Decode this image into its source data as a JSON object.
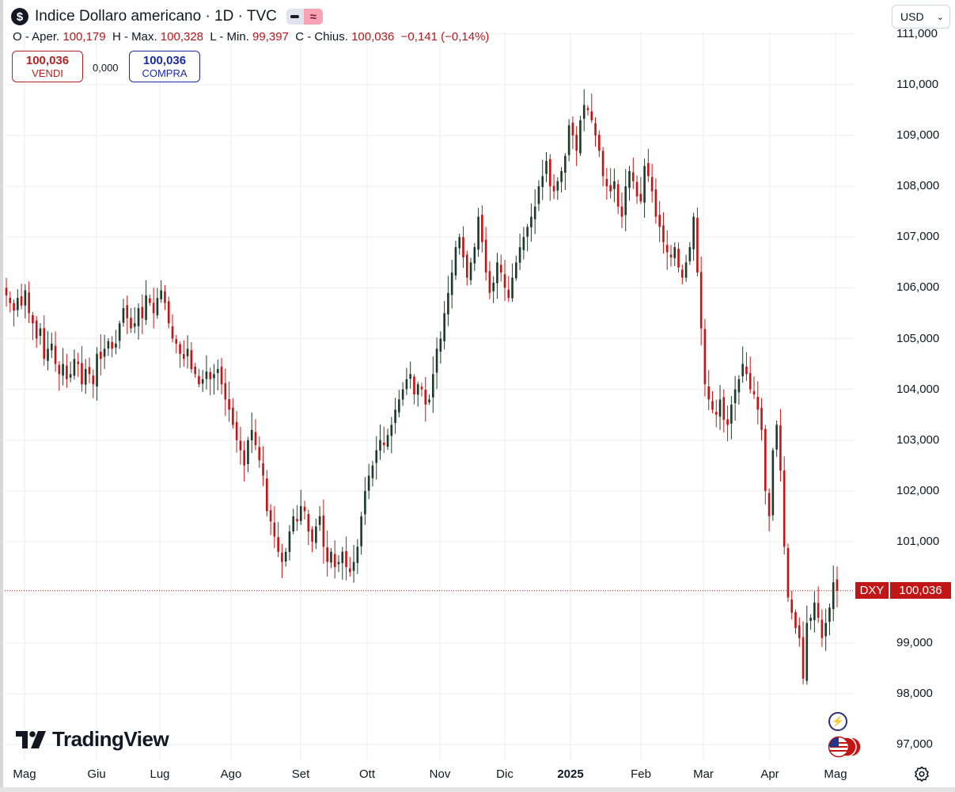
{
  "header": {
    "title": "Indice Dollaro americano · 1D · TVC",
    "currency": "USD"
  },
  "ohlc": {
    "open_label": "O - Aper.",
    "open": "100,179",
    "high_label": "H - Max.",
    "high": "100,328",
    "low_label": "L - Min.",
    "low": "99,397",
    "close_label": "C - Chius.",
    "close": "100,036",
    "change": "−0,141 (−0,14%)"
  },
  "trade": {
    "sell_price": "100,036",
    "sell_label": "VENDI",
    "spread": "0,000",
    "buy_price": "100,036",
    "buy_label": "COMPRA"
  },
  "price_tag": {
    "symbol": "DXY",
    "price": "100,036"
  },
  "logo": {
    "text": "TradingView"
  },
  "colors": {
    "up": "#1d3b2a",
    "down": "#c21515",
    "grid": "#eceef2"
  },
  "chart_data": {
    "type": "candlestick",
    "title": "Indice Dollaro americano · 1D · TVC",
    "y_ticks": [
      "111,000",
      "110,000",
      "109,000",
      "108,000",
      "107,000",
      "106,000",
      "105,000",
      "104,000",
      "103,000",
      "102,000",
      "101,000",
      "99,000",
      "98,000",
      "97,000"
    ],
    "x_ticks": [
      "Mag",
      "Giu",
      "Lug",
      "Ago",
      "Set",
      "Ott",
      "Nov",
      "Dic",
      "2025",
      "Feb",
      "Mar",
      "Apr",
      "Mag"
    ],
    "ylim": [
      96.5,
      111.1
    ],
    "last_price": 100.036,
    "grid": true,
    "closes": [
      105.85,
      105.7,
      105.55,
      105.8,
      105.65,
      105.95,
      105.5,
      105.3,
      105.0,
      105.2,
      104.6,
      104.8,
      104.9,
      104.5,
      104.3,
      104.5,
      104.2,
      104.3,
      104.6,
      104.5,
      104.1,
      104.4,
      104.3,
      104.1,
      104.7,
      104.6,
      104.8,
      104.95,
      104.8,
      104.9,
      105.3,
      105.6,
      105.4,
      105.2,
      105.3,
      105.6,
      105.4,
      105.85,
      105.7,
      105.5,
      105.8,
      105.95,
      105.7,
      105.3,
      105.0,
      104.9,
      104.7,
      104.6,
      104.8,
      104.4,
      104.3,
      104.1,
      104.2,
      104.35,
      104.2,
      104.3,
      104.4,
      104.1,
      103.8,
      103.6,
      103.3,
      103.0,
      102.8,
      102.5,
      103.0,
      103.2,
      102.9,
      102.6,
      102.3,
      101.6,
      101.4,
      101.1,
      100.8,
      100.6,
      100.8,
      101.2,
      101.5,
      101.4,
      101.7,
      101.6,
      101.2,
      101.0,
      101.3,
      101.5,
      100.9,
      100.6,
      100.8,
      100.5,
      100.6,
      100.8,
      100.5,
      100.4,
      100.6,
      100.9,
      101.5,
      102.0,
      102.3,
      102.5,
      102.8,
      103.0,
      102.9,
      103.1,
      103.3,
      103.6,
      103.8,
      104.0,
      104.2,
      104.3,
      103.9,
      104.1,
      104.0,
      103.7,
      103.8,
      104.3,
      104.8,
      105.0,
      105.5,
      105.9,
      106.3,
      106.8,
      107.0,
      106.6,
      106.2,
      106.5,
      106.8,
      107.4,
      106.9,
      106.3,
      105.9,
      106.1,
      106.5,
      106.3,
      106.0,
      105.8,
      106.2,
      106.5,
      106.8,
      107.0,
      107.2,
      107.4,
      107.6,
      108.0,
      108.2,
      108.5,
      108.0,
      107.9,
      108.1,
      108.3,
      108.6,
      109.2,
      109.0,
      108.7,
      109.3,
      109.6,
      109.5,
      109.3,
      109.0,
      108.7,
      108.2,
      108.0,
      107.9,
      108.1,
      107.6,
      107.4,
      108.0,
      108.3,
      108.1,
      107.8,
      107.7,
      108.4,
      108.2,
      107.9,
      107.4,
      107.2,
      106.9,
      106.7,
      106.6,
      106.8,
      106.4,
      106.2,
      106.5,
      106.8,
      107.4,
      106.3,
      105.2,
      104.1,
      103.8,
      103.6,
      103.5,
      103.8,
      103.4,
      103.3,
      103.7,
      104.0,
      104.2,
      104.5,
      104.3,
      104.0,
      103.9,
      103.6,
      103.2,
      102.0,
      101.5,
      102.8,
      103.3,
      102.4,
      100.9,
      99.9,
      99.6,
      99.3,
      99.1,
      98.3,
      99.4,
      99.5,
      99.8,
      99.5,
      99.1,
      99.4,
      99.7,
      100.2,
      100.036
    ]
  }
}
